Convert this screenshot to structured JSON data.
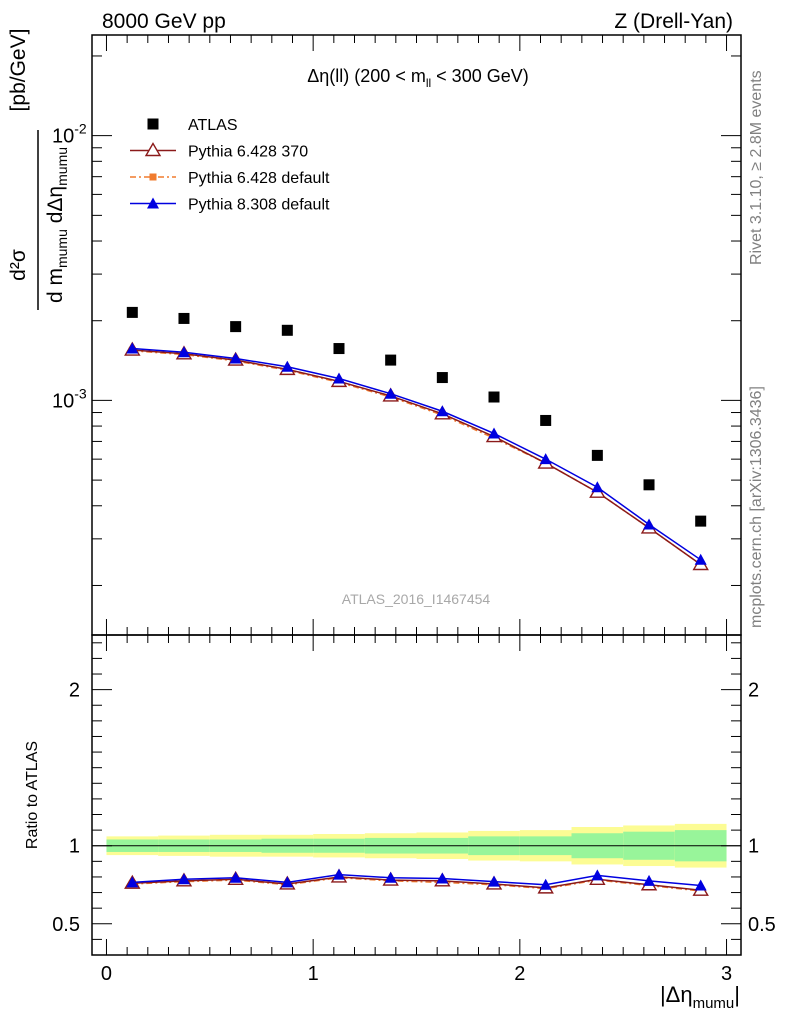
{
  "header": {
    "left": "8000 GeV pp",
    "right": "Z (Drell-Yan)"
  },
  "side": {
    "rivet": "Rivet 3.1.10, ≥ 2.8M events",
    "source": "mcplots.cern.ch [arXiv:1306.3436]"
  },
  "watermark": "ATLAS_2016_I1467454",
  "chart_data": {
    "type": "scatter",
    "title": "Δη(ll) (200 < m_ll < 300 GeV)",
    "ylabel": "d²σ / d m_mumu dΔη_mumu [pb/GeV]",
    "xlabel": "|Δη_mumu|",
    "ratio_ylabel": "Ratio to ATLAS",
    "xlim": [
      -0.07,
      3.07
    ],
    "ylim": [
      0.00013,
      0.024
    ],
    "yscale": "log",
    "ratio_ylim": [
      0.3,
      2.35
    ],
    "x_ticks": [
      "0",
      "1",
      "2",
      "3"
    ],
    "y_ticks": [
      "10^-3",
      "10^-2"
    ],
    "ratio_ticks": [
      "0.5",
      "1",
      "2"
    ],
    "x": [
      0.125,
      0.375,
      0.625,
      0.875,
      1.125,
      1.375,
      1.625,
      1.875,
      2.125,
      2.375,
      2.625,
      2.875
    ],
    "series": [
      {
        "name": "ATLAS",
        "color": "#000000",
        "marker": "square",
        "values": [
          0.00215,
          0.00204,
          0.0019,
          0.00184,
          0.00157,
          0.00142,
          0.00122,
          0.00103,
          0.00084,
          0.00062,
          0.00048,
          0.00035
        ],
        "ratio": [
          1,
          1,
          1,
          1,
          1,
          1,
          1,
          1,
          1,
          1,
          1,
          1
        ]
      },
      {
        "name": "Pythia 6.428 370",
        "color": "#8b1a1a",
        "marker": "open-triangle",
        "values": [
          0.00155,
          0.0015,
          0.00142,
          0.00131,
          0.00118,
          0.00104,
          0.00089,
          0.00073,
          0.00058,
          0.00045,
          0.00033,
          0.00024
        ],
        "ratio": [
          0.76,
          0.775,
          0.785,
          0.755,
          0.8,
          0.78,
          0.775,
          0.755,
          0.73,
          0.785,
          0.75,
          0.715
        ]
      },
      {
        "name": "Pythia 6.428 default",
        "color": "#f07b2e",
        "marker": "filled-square",
        "values": [
          0.00154,
          0.00149,
          0.00141,
          0.0013,
          0.00117,
          0.00103,
          0.00088,
          0.00072,
          0.00058,
          0.00045,
          0.00033,
          0.00024
        ],
        "ratio": [
          0.755,
          0.77,
          0.78,
          0.75,
          0.795,
          0.775,
          0.765,
          0.75,
          0.725,
          0.78,
          0.745,
          0.71
        ]
      },
      {
        "name": "Pythia 8.308 default",
        "color": "#0000e0",
        "marker": "filled-triangle",
        "values": [
          0.00157,
          0.00152,
          0.00144,
          0.00134,
          0.00121,
          0.00106,
          0.00091,
          0.00075,
          0.0006,
          0.00047,
          0.00034,
          0.00025
        ],
        "ratio": [
          0.765,
          0.785,
          0.795,
          0.765,
          0.815,
          0.795,
          0.79,
          0.77,
          0.75,
          0.81,
          0.775,
          0.745
        ]
      }
    ],
    "uncertainty": {
      "stat": [
        0.04,
        0.04,
        0.04,
        0.045,
        0.045,
        0.05,
        0.05,
        0.06,
        0.06,
        0.08,
        0.09,
        0.1
      ],
      "total": [
        0.06,
        0.065,
        0.07,
        0.07,
        0.075,
        0.08,
        0.085,
        0.095,
        0.1,
        0.12,
        0.13,
        0.14
      ],
      "colors": {
        "stat": "#98f59a",
        "total": "#fcfc94"
      }
    }
  }
}
